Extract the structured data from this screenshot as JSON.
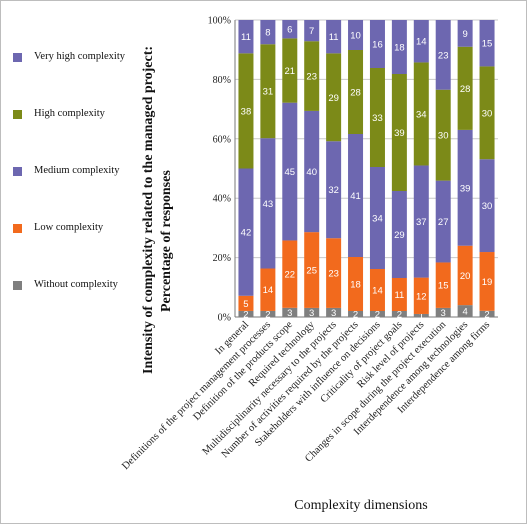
{
  "chart_data": {
    "type": "bar",
    "stacked": true,
    "percent": true,
    "title": "",
    "ylabel_lines": [
      "Intensity of complexity related to the managed project:",
      "Percentage of responses"
    ],
    "xlabel": "Complexity dimensions",
    "ylim": [
      0,
      100
    ],
    "yticks": [
      "0%",
      "20%",
      "40%",
      "60%",
      "80%",
      "100%"
    ],
    "grid": true,
    "legend_position": "left",
    "categories": [
      "In general",
      "Definitions of the project management processes",
      "Definition of the products scope",
      "Required technology",
      "Multidisciplinarity necessary to the projects",
      "Number of activities required by the projects",
      "Stakeholders with influence on decisions",
      "Criticality of project goals",
      "Risk level of projects",
      "Changes in scope during the project execution",
      "Interdependence among technologies",
      "Interdependence among firms"
    ],
    "series": [
      {
        "name": "Without complexity",
        "color": "#7f7f7f",
        "values": [
          2,
          2,
          3,
          3,
          3,
          2,
          2,
          2,
          1,
          3,
          4,
          2
        ]
      },
      {
        "name": "Low complexity",
        "color": "#f26a1d",
        "values": [
          5,
          14,
          22,
          25,
          23,
          18,
          14,
          11,
          12,
          15,
          20,
          19
        ]
      },
      {
        "name": "Medium complexity",
        "color": "#6d67b0",
        "values": [
          42,
          43,
          45,
          40,
          32,
          41,
          34,
          29,
          37,
          27,
          39,
          30
        ]
      },
      {
        "name": "High complexity",
        "color": "#7c8a18",
        "values": [
          38,
          31,
          21,
          23,
          29,
          28,
          33,
          39,
          34,
          30,
          28,
          30
        ]
      },
      {
        "name": "Very high complexity",
        "color": "#6d67b0",
        "values": [
          11,
          8,
          6,
          7,
          11,
          10,
          16,
          18,
          14,
          23,
          9,
          15
        ]
      }
    ],
    "legend": [
      {
        "label": "Very high complexity",
        "color": "#6d67b0"
      },
      {
        "label": "High complexity",
        "color": "#7c8a18"
      },
      {
        "label": "Medium complexity",
        "color": "#6d67b0"
      },
      {
        "label": "Low complexity",
        "color": "#f26a1d"
      },
      {
        "label": "Without complexity",
        "color": "#7f7f7f"
      }
    ]
  }
}
